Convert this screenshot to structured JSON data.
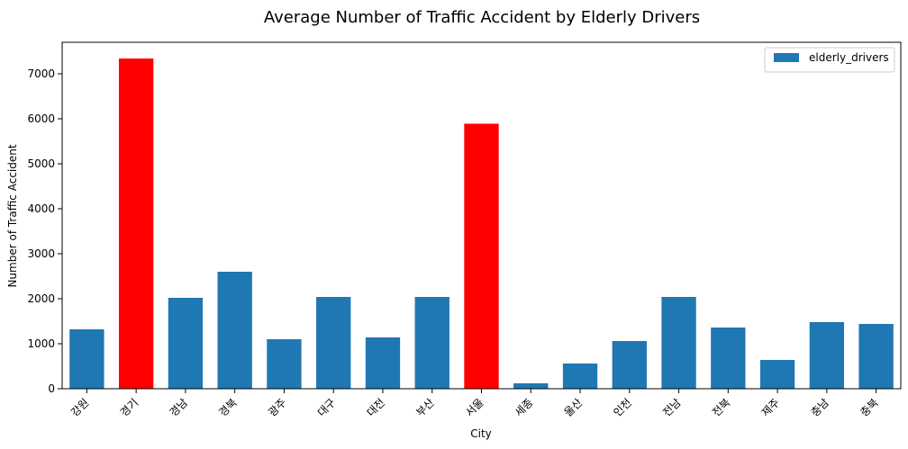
{
  "chart_data": {
    "type": "bar",
    "title": "Average Number of Traffic Accident by Elderly Drivers",
    "xlabel": "City",
    "ylabel": "Number of Traffic Accident",
    "categories": [
      "강원",
      "경기",
      "경남",
      "경북",
      "광주",
      "대구",
      "대전",
      "부산",
      "서울",
      "세종",
      "울산",
      "인천",
      "전남",
      "전북",
      "제주",
      "충남",
      "충북"
    ],
    "series": [
      {
        "name": "elderly_drivers",
        "values": [
          1320,
          7340,
          2020,
          2600,
          1100,
          2040,
          1140,
          2040,
          5890,
          120,
          560,
          1060,
          2040,
          1360,
          640,
          1480,
          1440
        ]
      }
    ],
    "bar_colors": [
      "#1f77b4",
      "#ff0000",
      "#1f77b4",
      "#1f77b4",
      "#1f77b4",
      "#1f77b4",
      "#1f77b4",
      "#1f77b4",
      "#ff0000",
      "#1f77b4",
      "#1f77b4",
      "#1f77b4",
      "#1f77b4",
      "#1f77b4",
      "#1f77b4",
      "#1f77b4",
      "#1f77b4"
    ],
    "default_color": "#1f77b4",
    "highlight_color": "#ff0000",
    "ylim": [
      0,
      7700
    ],
    "yticks": [
      0,
      1000,
      2000,
      3000,
      4000,
      5000,
      6000,
      7000
    ],
    "grid": false,
    "legend_position": "top-right"
  }
}
